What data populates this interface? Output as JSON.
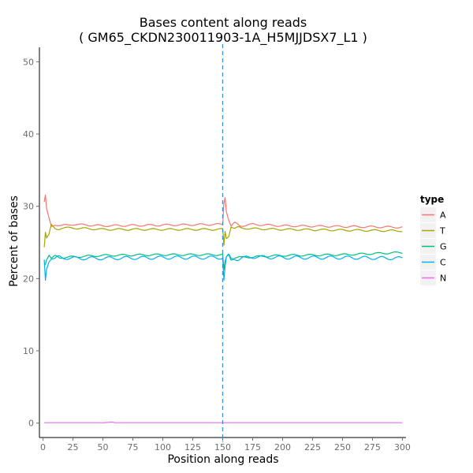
{
  "chart_data": {
    "type": "line",
    "title": "Bases content along reads",
    "subtitle": "( GM65_CKDN230011903-1A_H5MJJDSX7_L1 )",
    "xlabel": "Position along reads",
    "ylabel": "Percent of bases",
    "xlim": [
      -3,
      303
    ],
    "ylim": [
      -2,
      52
    ],
    "x_ticks": [
      0,
      25,
      50,
      75,
      100,
      125,
      150,
      175,
      200,
      225,
      250,
      275,
      300
    ],
    "y_ticks": [
      0,
      10,
      20,
      30,
      40,
      50
    ],
    "grid": false,
    "legend_position": "right",
    "legend_title": "type",
    "vline": {
      "x": 150,
      "style": "dashed",
      "color": "#3a8fd6"
    },
    "series": [
      {
        "name": "A",
        "color": "#f8766d",
        "x": [
          1,
          2,
          3,
          5,
          7,
          10,
          15,
          25,
          50,
          100,
          150,
          151,
          152,
          153,
          155,
          157,
          160,
          165,
          175,
          200,
          250,
          300
        ],
        "values": [
          30.5,
          31.4,
          29.5,
          28.2,
          27.2,
          27.6,
          27.3,
          27.5,
          27.3,
          27.4,
          27.5,
          30.5,
          31.4,
          29.5,
          28.2,
          27.2,
          27.6,
          27.3,
          27.5,
          27.3,
          27.2,
          27.1
        ]
      },
      {
        "name": "T",
        "color": "#a3a500",
        "x": [
          1,
          2,
          3,
          5,
          7,
          10,
          15,
          25,
          50,
          100,
          150,
          151,
          152,
          153,
          155,
          157,
          160,
          165,
          175,
          200,
          250,
          300
        ],
        "values": [
          24.5,
          26.5,
          25.6,
          26.0,
          27.3,
          26.9,
          27.0,
          27.0,
          26.8,
          26.8,
          26.8,
          24.5,
          26.5,
          25.6,
          26.0,
          27.3,
          26.9,
          27.0,
          26.9,
          26.8,
          26.7,
          26.6
        ]
      },
      {
        "name": "G",
        "color": "#00bf7d",
        "x": [
          1,
          2,
          3,
          5,
          7,
          10,
          15,
          25,
          50,
          100,
          150,
          151,
          152,
          153,
          155,
          157,
          160,
          165,
          175,
          200,
          250,
          300
        ],
        "values": [
          22.0,
          22.2,
          22.8,
          23.3,
          22.7,
          23.0,
          22.9,
          23.0,
          23.2,
          23.3,
          23.3,
          21.0,
          22.2,
          22.8,
          23.3,
          22.7,
          23.0,
          22.9,
          23.0,
          23.2,
          23.3,
          23.6
        ]
      },
      {
        "name": "C",
        "color": "#00b0f6",
        "x": [
          1,
          2,
          3,
          5,
          7,
          10,
          15,
          25,
          50,
          100,
          150,
          151,
          152,
          153,
          155,
          157,
          160,
          165,
          175,
          200,
          250,
          300
        ],
        "values": [
          22.5,
          19.8,
          21.5,
          22.7,
          23.0,
          22.6,
          22.9,
          22.8,
          22.8,
          22.9,
          22.9,
          19.8,
          21.5,
          22.7,
          23.0,
          22.6,
          22.9,
          22.8,
          23.0,
          22.9,
          22.9,
          22.8
        ]
      },
      {
        "name": "N",
        "color": "#e76bf3",
        "x": [
          1,
          50,
          58,
          60,
          100,
          150,
          200,
          250,
          300
        ],
        "values": [
          0.05,
          0.05,
          0.15,
          0.05,
          0.05,
          0.05,
          0.05,
          0.05,
          0.05
        ]
      }
    ]
  }
}
